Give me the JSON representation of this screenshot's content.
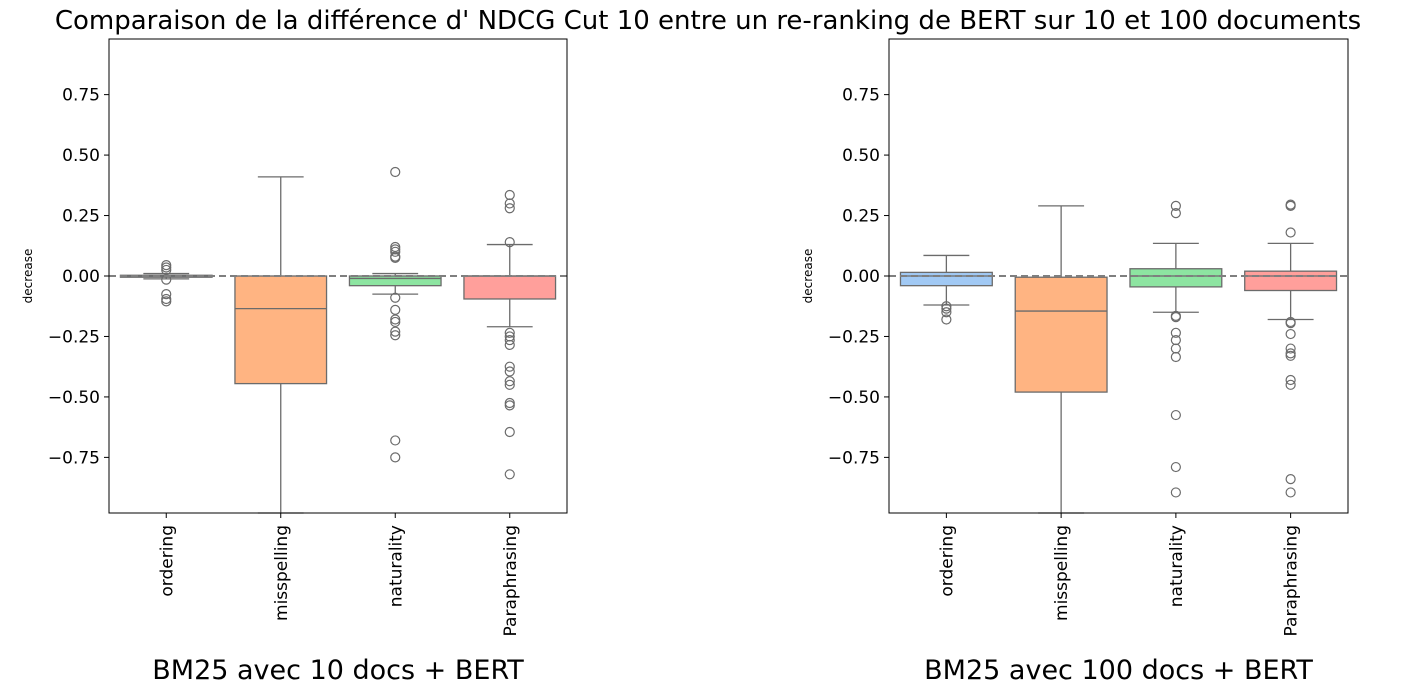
{
  "title": "Comparaison de la différence d' NDCG Cut 10 entre un re-ranking de BERT sur 10 et 100 documents",
  "chart_data": [
    {
      "type": "box",
      "xlabel": "BM25 avec 10 docs + BERT",
      "ylabel": "decrease",
      "ylim": [
        -0.98,
        0.98
      ],
      "yticks": [
        -0.75,
        -0.5,
        -0.25,
        0.0,
        0.25,
        0.5,
        0.75
      ],
      "ytick_labels": [
        "−0.75",
        "−0.50",
        "−0.25",
        "0.00",
        "0.25",
        "0.50",
        "0.75"
      ],
      "reference_line": 0.0,
      "categories": [
        "ordering",
        "misspelling",
        "naturality",
        "Paraphrasing"
      ],
      "boxes": [
        {
          "name": "ordering",
          "color": "#a1c9f4",
          "q1": -0.005,
          "median": 0.0,
          "q3": 0.003,
          "whislo": -0.012,
          "whishi": 0.01,
          "fliers": [
            0.045,
            0.035,
            0.025,
            -0.015,
            -0.075,
            -0.095,
            -0.105
          ]
        },
        {
          "name": "misspelling",
          "color": "#ffb482",
          "q1": -0.445,
          "median": -0.135,
          "q3": 0.0,
          "whislo": -0.98,
          "whishi": 0.41,
          "fliers": []
        },
        {
          "name": "naturality",
          "color": "#8de5a1",
          "q1": -0.04,
          "median": -0.01,
          "q3": 0.0,
          "whislo": -0.075,
          "whishi": 0.01,
          "fliers": [
            0.43,
            0.12,
            0.11,
            0.1,
            0.08,
            0.075,
            -0.09,
            -0.14,
            -0.18,
            -0.19,
            -0.23,
            -0.245,
            -0.68,
            -0.75
          ]
        },
        {
          "name": "Paraphrasing",
          "color": "#ff9f9b",
          "q1": -0.095,
          "median": 0.0,
          "q3": 0.0,
          "whislo": -0.21,
          "whishi": 0.13,
          "fliers": [
            0.335,
            0.3,
            0.28,
            0.14,
            -0.235,
            -0.25,
            -0.265,
            -0.285,
            -0.375,
            -0.395,
            -0.435,
            -0.45,
            -0.525,
            -0.535,
            -0.645,
            -0.82
          ]
        }
      ]
    },
    {
      "type": "box",
      "xlabel": "BM25 avec 100 docs + BERT",
      "ylabel": "decrease",
      "ylim": [
        -0.98,
        0.98
      ],
      "yticks": [
        -0.75,
        -0.5,
        -0.25,
        0.0,
        0.25,
        0.5,
        0.75
      ],
      "ytick_labels": [
        "−0.75",
        "−0.50",
        "−0.25",
        "0.00",
        "0.25",
        "0.50",
        "0.75"
      ],
      "reference_line": 0.0,
      "categories": [
        "ordering",
        "misspelling",
        "naturality",
        "Paraphrasing"
      ],
      "boxes": [
        {
          "name": "ordering",
          "color": "#a1c9f4",
          "q1": -0.04,
          "median": 0.0,
          "q3": 0.015,
          "whislo": -0.12,
          "whishi": 0.085,
          "fliers": [
            -0.125,
            -0.135,
            -0.15,
            -0.18
          ]
        },
        {
          "name": "misspelling",
          "color": "#ffb482",
          "q1": -0.48,
          "median": -0.145,
          "q3": -0.005,
          "whislo": -0.98,
          "whishi": 0.29,
          "fliers": []
        },
        {
          "name": "naturality",
          "color": "#8de5a1",
          "q1": -0.045,
          "median": 0.0,
          "q3": 0.03,
          "whislo": -0.15,
          "whishi": 0.135,
          "fliers": [
            0.29,
            0.26,
            -0.165,
            -0.17,
            -0.235,
            -0.265,
            -0.3,
            -0.335,
            -0.575,
            -0.79,
            -0.895
          ]
        },
        {
          "name": "Paraphrasing",
          "color": "#ff9f9b",
          "q1": -0.06,
          "median": 0.0,
          "q3": 0.02,
          "whislo": -0.18,
          "whishi": 0.135,
          "fliers": [
            0.295,
            0.29,
            0.18,
            -0.19,
            -0.195,
            -0.24,
            -0.3,
            -0.32,
            -0.33,
            -0.43,
            -0.45,
            -0.84,
            -0.895
          ]
        }
      ]
    }
  ]
}
